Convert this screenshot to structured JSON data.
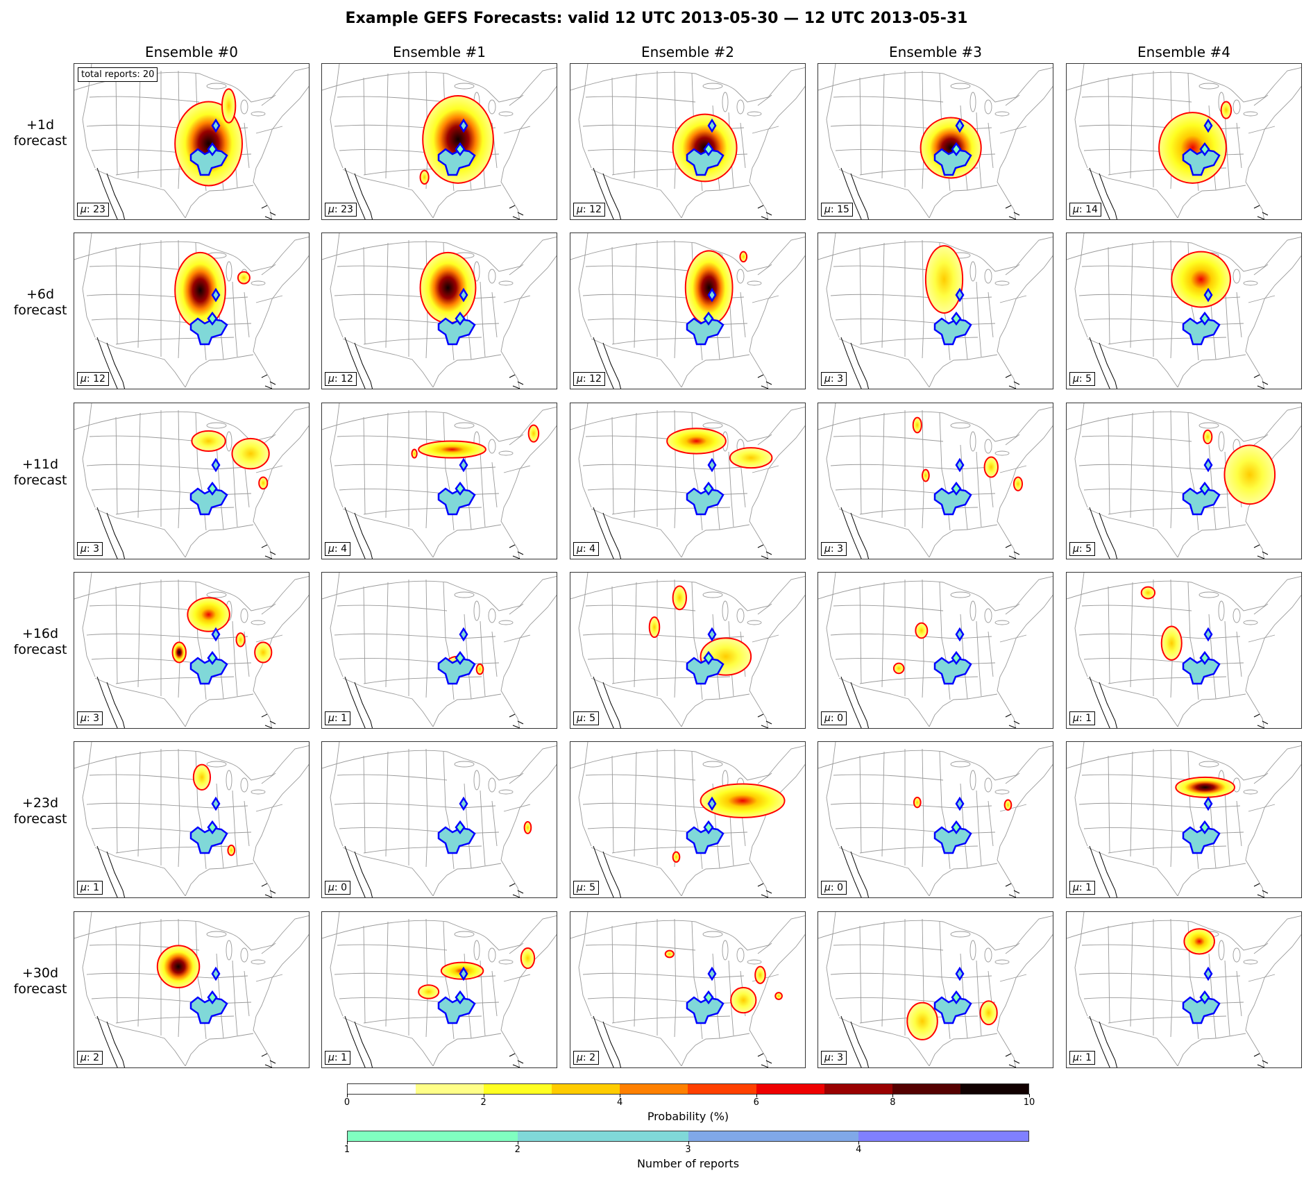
{
  "title": "Example GEFS Forecasts: valid 12 UTC 2013-05-30 — 12 UTC 2013-05-31",
  "columns": [
    "Ensemble #0",
    "Ensemble #1",
    "Ensemble #2",
    "Ensemble #3",
    "Ensemble #4"
  ],
  "rows": [
    {
      "lead": "+1d",
      "suffix": "forecast",
      "mu": [
        "23",
        "23",
        "12",
        "15",
        "14"
      ]
    },
    {
      "lead": "+6d",
      "suffix": "forecast",
      "mu": [
        "12",
        "12",
        "12",
        "3",
        "5"
      ]
    },
    {
      "lead": "+11d",
      "suffix": "forecast",
      "mu": [
        "3",
        "4",
        "4",
        "3",
        "5"
      ]
    },
    {
      "lead": "+16d",
      "suffix": "forecast",
      "mu": [
        "3",
        "1",
        "5",
        "0",
        "1"
      ]
    },
    {
      "lead": "+23d",
      "suffix": "forecast",
      "mu": [
        "1",
        "0",
        "5",
        "0",
        "1"
      ]
    },
    {
      "lead": "+30d",
      "suffix": "forecast",
      "mu": [
        "2",
        "1",
        "2",
        "3",
        "1"
      ]
    }
  ],
  "mu_symbol": "μ",
  "mu_sep": ": ",
  "total_reports_label": "total reports: 20",
  "colorbars": [
    {
      "label": "Probability (%)",
      "ticks": [
        "0",
        "2",
        "4",
        "6",
        "8",
        "10"
      ],
      "colors": [
        "#ffffff",
        "#ffff88",
        "#ffff22",
        "#ffcc00",
        "#ff8000",
        "#ff4000",
        "#ee0000",
        "#990000",
        "#550000",
        "#110000"
      ]
    },
    {
      "label": "Number of reports",
      "ticks": [
        "1",
        "2",
        "3",
        "4"
      ],
      "colors": [
        "#80ffc0",
        "#80d8d8",
        "#80a8e8",
        "#8080ff"
      ]
    }
  ],
  "colors": {
    "forecast_contour": "#ff0000",
    "observed_contour": "#0000ff",
    "map_lines": "#999999"
  },
  "chart_data": {
    "type": "heatmap",
    "title": "Example GEFS Forecasts: valid 12 UTC 2013-05-30 — 12 UTC 2013-05-31",
    "columns": [
      "Ensemble #0",
      "Ensemble #1",
      "Ensemble #2",
      "Ensemble #3",
      "Ensemble #4"
    ],
    "rows": [
      "+1d forecast",
      "+6d forecast",
      "+11d forecast",
      "+16d forecast",
      "+23d forecast",
      "+30d forecast"
    ],
    "mu": [
      [
        23,
        23,
        12,
        15,
        14
      ],
      [
        12,
        12,
        12,
        3,
        5
      ],
      [
        3,
        4,
        4,
        3,
        5
      ],
      [
        3,
        1,
        5,
        0,
        1
      ],
      [
        1,
        0,
        5,
        0,
        1
      ],
      [
        2,
        1,
        2,
        3,
        1
      ]
    ],
    "total_reports": 20,
    "probability_colorbar": {
      "label": "Probability (%)",
      "range": [
        0,
        10
      ],
      "ticks": [
        0,
        2,
        4,
        6,
        8,
        10
      ]
    },
    "reports_colorbar": {
      "label": "Number of reports",
      "range": [
        1,
        5
      ],
      "ticks": [
        1,
        2,
        3,
        4
      ]
    }
  }
}
